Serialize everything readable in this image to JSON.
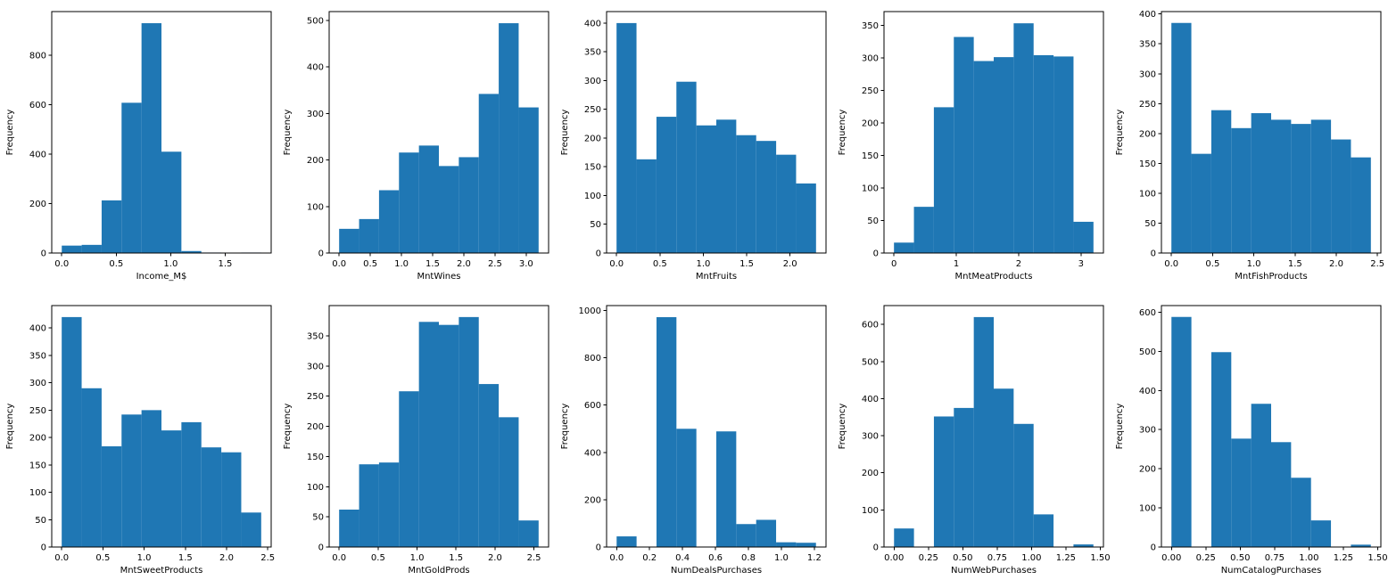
{
  "figure": {
    "layout": "2x5-histogram-grid",
    "background": "#ffffff",
    "bar_color": "#1f77b4",
    "spine_color": "#000000",
    "grid": "off",
    "legend": "none"
  },
  "chart_data": [
    {
      "type": "bar",
      "subtype": "histogram",
      "title": "",
      "xlabel": "Income_M$",
      "ylabel": "Frequency",
      "bins": 10,
      "bin_start": 0.0,
      "bin_end": 1.83,
      "values": [
        30,
        33,
        213,
        608,
        930,
        410,
        8,
        2,
        1,
        2
      ],
      "yticks": [
        0,
        200,
        400,
        600,
        800
      ],
      "xticks": [
        0.0,
        0.5,
        1.0,
        1.5
      ],
      "xtick_labels": [
        "0.0",
        "0.5",
        "1.0",
        "1.5"
      ],
      "xlim": [
        -0.092,
        1.922
      ],
      "ylim": [
        0,
        977
      ]
    },
    {
      "type": "bar",
      "subtype": "histogram",
      "title": "",
      "xlabel": "MntWines",
      "ylabel": "Frequency",
      "bins": 10,
      "bin_start": 0.0,
      "bin_end": 3.2,
      "values": [
        52,
        73,
        135,
        216,
        231,
        187,
        206,
        342,
        494,
        313
      ],
      "yticks": [
        0,
        100,
        200,
        300,
        400,
        500
      ],
      "xticks": [
        0.0,
        0.5,
        1.0,
        1.5,
        2.0,
        2.5,
        3.0
      ],
      "xtick_labels": [
        "0.0",
        "0.5",
        "1.0",
        "1.5",
        "2.0",
        "2.5",
        "3.0"
      ],
      "xlim": [
        -0.16,
        3.36
      ],
      "ylim": [
        0,
        519
      ]
    },
    {
      "type": "bar",
      "subtype": "histogram",
      "title": "",
      "xlabel": "MntFruits",
      "ylabel": "Frequency",
      "bins": 10,
      "bin_start": 0.0,
      "bin_end": 2.3,
      "values": [
        400,
        163,
        237,
        298,
        222,
        232,
        205,
        195,
        171,
        121
      ],
      "yticks": [
        0,
        50,
        100,
        150,
        200,
        250,
        300,
        350,
        400
      ],
      "xticks": [
        0.0,
        0.5,
        1.0,
        1.5,
        2.0
      ],
      "xtick_labels": [
        "0.0",
        "0.5",
        "1.0",
        "1.5",
        "2.0"
      ],
      "xlim": [
        -0.115,
        2.415
      ],
      "ylim": [
        0,
        420
      ]
    },
    {
      "type": "bar",
      "subtype": "histogram",
      "title": "",
      "xlabel": "MntMeatProducts",
      "ylabel": "Frequency",
      "bins": 10,
      "bin_start": 0.0,
      "bin_end": 3.2,
      "values": [
        16,
        71,
        224,
        332,
        295,
        301,
        353,
        304,
        302,
        48
      ],
      "yticks": [
        0,
        50,
        100,
        150,
        200,
        250,
        300,
        350
      ],
      "xticks": [
        0,
        1,
        2,
        3
      ],
      "xtick_labels": [
        "0",
        "1",
        "2",
        "3"
      ],
      "xlim": [
        -0.16,
        3.36
      ],
      "ylim": [
        0,
        371
      ]
    },
    {
      "type": "bar",
      "subtype": "histogram",
      "title": "",
      "xlabel": "MntFishProducts",
      "ylabel": "Frequency",
      "bins": 10,
      "bin_start": 0.0,
      "bin_end": 2.42,
      "values": [
        385,
        166,
        239,
        209,
        234,
        223,
        216,
        223,
        190,
        160
      ],
      "yticks": [
        0,
        50,
        100,
        150,
        200,
        250,
        300,
        350,
        400
      ],
      "xticks": [
        0.0,
        0.5,
        1.0,
        1.5,
        2.0,
        2.5
      ],
      "xtick_labels": [
        "0.0",
        "0.5",
        "1.0",
        "1.5",
        "2.0",
        "2.5"
      ],
      "xlim": [
        -0.121,
        2.541
      ],
      "ylim": [
        0,
        404
      ]
    },
    {
      "type": "bar",
      "subtype": "histogram",
      "title": "",
      "xlabel": "MntSweetProducts",
      "ylabel": "Frequency",
      "bins": 10,
      "bin_start": 0.0,
      "bin_end": 2.42,
      "values": [
        420,
        290,
        184,
        242,
        250,
        213,
        228,
        182,
        173,
        63
      ],
      "yticks": [
        0,
        50,
        100,
        150,
        200,
        250,
        300,
        350,
        400
      ],
      "xticks": [
        0.0,
        0.5,
        1.0,
        1.5,
        2.0,
        2.5
      ],
      "xtick_labels": [
        "0.0",
        "0.5",
        "1.0",
        "1.5",
        "2.0",
        "2.5"
      ],
      "xlim": [
        -0.121,
        2.541
      ],
      "ylim": [
        0,
        441
      ]
    },
    {
      "type": "bar",
      "subtype": "histogram",
      "title": "",
      "xlabel": "MntGoldProds",
      "ylabel": "Frequency",
      "bins": 10,
      "bin_start": 0.0,
      "bin_end": 2.56,
      "values": [
        62,
        137,
        140,
        258,
        373,
        368,
        381,
        270,
        215,
        44
      ],
      "yticks": [
        0,
        50,
        100,
        150,
        200,
        250,
        300,
        350
      ],
      "xticks": [
        0.0,
        0.5,
        1.0,
        1.5,
        2.0,
        2.5
      ],
      "xtick_labels": [
        "0.0",
        "0.5",
        "1.0",
        "1.5",
        "2.0",
        "2.5"
      ],
      "xlim": [
        -0.128,
        2.688
      ],
      "ylim": [
        0,
        400
      ]
    },
    {
      "type": "bar",
      "subtype": "histogram",
      "title": "",
      "xlabel": "NumDealsPurchases",
      "ylabel": "Frequency",
      "bins": 10,
      "bin_start": 0.0,
      "bin_end": 1.21,
      "values": [
        45,
        0,
        972,
        500,
        0,
        489,
        97,
        115,
        20,
        18
      ],
      "yticks": [
        0,
        200,
        400,
        600,
        800,
        1000
      ],
      "xticks": [
        0.0,
        0.2,
        0.4,
        0.6,
        0.8,
        1.0,
        1.2
      ],
      "xtick_labels": [
        "0.0",
        "0.2",
        "0.4",
        "0.6",
        "0.8",
        "1.0",
        "1.2"
      ],
      "xlim": [
        -0.061,
        1.271
      ],
      "ylim": [
        0,
        1021
      ]
    },
    {
      "type": "bar",
      "subtype": "histogram",
      "title": "",
      "xlabel": "NumWebPurchases",
      "ylabel": "Frequency",
      "bins": 10,
      "bin_start": 0.0,
      "bin_end": 1.45,
      "values": [
        50,
        0,
        352,
        375,
        620,
        427,
        332,
        88,
        0,
        7
      ],
      "yticks": [
        0,
        100,
        200,
        300,
        400,
        500,
        600
      ],
      "xticks": [
        0.0,
        0.25,
        0.5,
        0.75,
        1.0,
        1.25,
        1.5
      ],
      "xtick_labels": [
        "0.00",
        "0.25",
        "0.50",
        "0.75",
        "1.00",
        "1.25",
        "1.50"
      ],
      "xlim": [
        -0.073,
        1.523
      ],
      "ylim": [
        0,
        651
      ]
    },
    {
      "type": "bar",
      "subtype": "histogram",
      "title": "",
      "xlabel": "NumCatalogPurchases",
      "ylabel": "Frequency",
      "bins": 10,
      "bin_start": 0.0,
      "bin_end": 1.45,
      "values": [
        588,
        0,
        498,
        277,
        366,
        268,
        177,
        68,
        0,
        6
      ],
      "yticks": [
        0,
        100,
        200,
        300,
        400,
        500,
        600
      ],
      "xticks": [
        0.0,
        0.25,
        0.5,
        0.75,
        1.0,
        1.25,
        1.5
      ],
      "xtick_labels": [
        "0.00",
        "0.25",
        "0.50",
        "0.75",
        "1.00",
        "1.25",
        "1.50"
      ],
      "xlim": [
        -0.073,
        1.523
      ],
      "ylim": [
        0,
        617
      ]
    }
  ]
}
